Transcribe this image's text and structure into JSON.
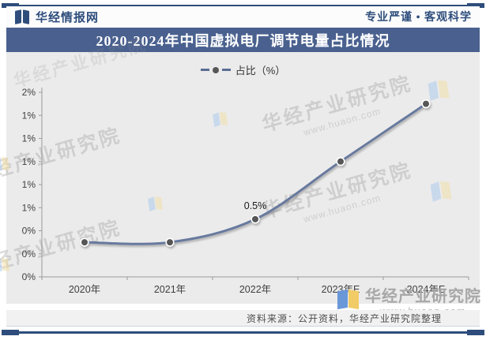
{
  "header": {
    "brand": "华经情报网",
    "slogan": "专业严谨 • 客观科学",
    "title": "2020-2024年中国虚拟电厂调节电量占比情况"
  },
  "chart_data": {
    "type": "line",
    "title": "2020-2024年中国虚拟电厂调节电量占比情况",
    "categories": [
      "2020年",
      "2021年",
      "2022年",
      "2023年E",
      "2024年E"
    ],
    "series": [
      {
        "name": "占比（%）",
        "values": [
          0.3,
          0.3,
          0.5,
          1.0,
          1.5
        ]
      }
    ],
    "unit": "percent",
    "ylim": [
      0,
      1.6
    ],
    "y_tick_step": 0.2,
    "y_tick_labels_top_to_bottom": [
      "2%",
      "1%",
      "1%",
      "1%",
      "1%",
      "1%",
      "0%",
      "0%",
      "0%"
    ],
    "data_labels": [
      {
        "category": "2022年",
        "text": "0.5%"
      }
    ],
    "grid": false,
    "legend_position": "top",
    "smooth": true,
    "line_color": "#67799e",
    "marker_color": "#575757",
    "axis_color": "#9b9b9b",
    "label_color": "#3f3f3f"
  },
  "watermark": {
    "name": "华经产业研究院",
    "url": "www.huaon.com"
  },
  "footer": {
    "source": "资料来源：公开资料，华经产业研究院整理"
  },
  "colors": {
    "brand_navy": "#2e4d7c",
    "titlebar_navy": "#4a618f",
    "chart_bg": "#ebebeb",
    "line": "#67799e",
    "marker": "#575757"
  }
}
